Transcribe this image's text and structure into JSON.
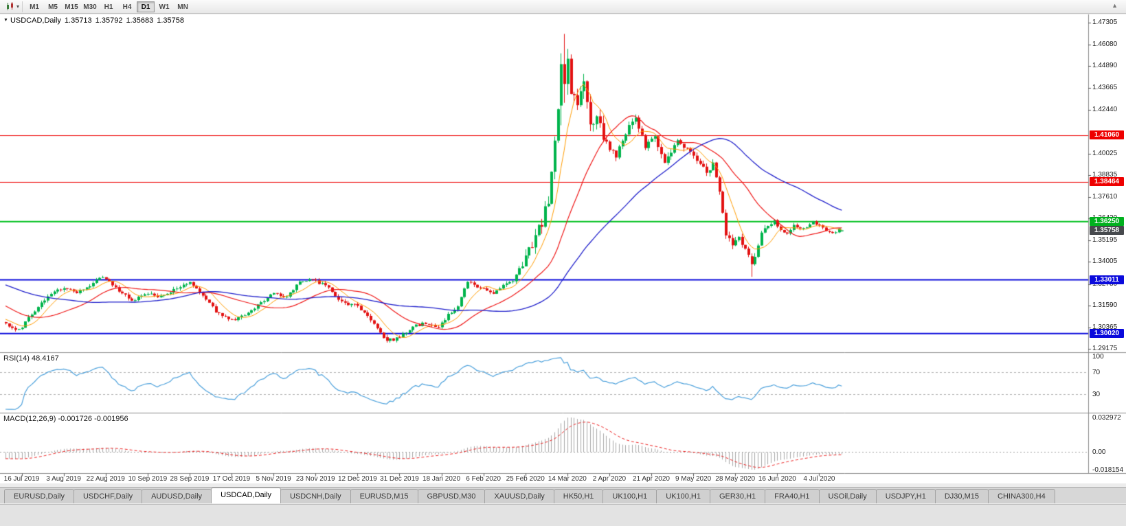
{
  "toolbar": {
    "periodicity_buttons": [
      "M1",
      "M5",
      "M15",
      "M30",
      "H1",
      "H4",
      "D1",
      "W1",
      "MN"
    ],
    "active_period": "D1",
    "dropdown_caret": "▾",
    "scroll_up_glyph": "▲"
  },
  "chart": {
    "symbol_label": "USDCAD,Daily",
    "collapse_marker": "▼",
    "ohlc": {
      "open": "1.35713",
      "high": "1.35792",
      "low": "1.35683",
      "close": "1.35758"
    },
    "up_color": "#00b44c",
    "down_color": "#e31212",
    "price_axis": {
      "top_price": 1.47305,
      "bottom_price": 1.29175,
      "labels": [
        "1.47305",
        "1.46080",
        "1.44890",
        "1.43665",
        "1.42440",
        "1.40025",
        "1.38835",
        "1.37610",
        "1.36420",
        "1.35195",
        "1.34005",
        "1.32780",
        "1.31590",
        "1.30365",
        "1.29175"
      ]
    },
    "hlines": [
      {
        "price": 1.4106,
        "color": "#ee0000",
        "width": 1
      },
      {
        "price": 1.38464,
        "color": "#ee0000",
        "width": 1
      },
      {
        "price": 1.3625,
        "color": "#00c01e",
        "width": 2
      },
      {
        "price": 1.33011,
        "color": "#0a0adc",
        "width": 2
      },
      {
        "price": 1.3002,
        "color": "#0a0adc",
        "width": 2
      }
    ],
    "badges": [
      {
        "text": "1.41060",
        "color": "#ee0000",
        "kind": "resistance-line"
      },
      {
        "text": "1.38464",
        "color": "#ee0000",
        "kind": "resistance-line"
      },
      {
        "text": "1.36250",
        "color": "#00b01e",
        "kind": "level-line"
      },
      {
        "text": "1.35758",
        "color": "#46494d",
        "kind": "last-price"
      },
      {
        "text": "1.33011",
        "color": "#0a0adc",
        "kind": "support-line"
      },
      {
        "text": "1.30020",
        "color": "#0a0adc",
        "kind": "support-line"
      }
    ]
  },
  "chart_data": {
    "type": "candlestick",
    "title": "USDCAD Daily",
    "seed": 1234567,
    "first_label_candle": 5,
    "label_step": 13,
    "x_labels": [
      "16 Jul 2019",
      "3 Aug 2019",
      "22 Aug 2019",
      "10 Sep 2019",
      "28 Sep 2019",
      "17 Oct 2019",
      "5 Nov 2019",
      "23 Nov 2019",
      "12 Dec 2019",
      "31 Dec 2019",
      "18 Jan 2020",
      "6 Feb 2020",
      "25 Feb 2020",
      "14 Mar 2020",
      "2 Apr 2020",
      "21 Apr 2020",
      "9 May 2020",
      "28 May 2020",
      "16 Jun 2020",
      "4 Jul 2020"
    ],
    "anchors": [
      [
        -60,
        1.3435
      ],
      [
        -45,
        1.3385
      ],
      [
        -30,
        1.3345
      ],
      [
        -15,
        1.3185
      ],
      [
        -5,
        1.309
      ],
      [
        0,
        1.3055
      ],
      [
        4,
        1.302
      ],
      [
        8,
        1.311
      ],
      [
        13,
        1.3215
      ],
      [
        18,
        1.326
      ],
      [
        22,
        1.3225
      ],
      [
        26,
        1.327
      ],
      [
        30,
        1.332
      ],
      [
        34,
        1.3255
      ],
      [
        39,
        1.3185
      ],
      [
        44,
        1.3225
      ],
      [
        48,
        1.3205
      ],
      [
        52,
        1.3245
      ],
      [
        57,
        1.3285
      ],
      [
        61,
        1.3215
      ],
      [
        65,
        1.3125
      ],
      [
        70,
        1.3075
      ],
      [
        74,
        1.3105
      ],
      [
        78,
        1.316
      ],
      [
        83,
        1.323
      ],
      [
        87,
        1.3205
      ],
      [
        91,
        1.3295
      ],
      [
        95,
        1.33
      ],
      [
        99,
        1.327
      ],
      [
        104,
        1.3175
      ],
      [
        109,
        1.3155
      ],
      [
        113,
        1.308
      ],
      [
        117,
        1.2985
      ],
      [
        120,
        1.2965
      ],
      [
        124,
        1.301
      ],
      [
        127,
        1.3045
      ],
      [
        130,
        1.306
      ],
      [
        134,
        1.3035
      ],
      [
        137,
        1.3105
      ],
      [
        140,
        1.316
      ],
      [
        143,
        1.329
      ],
      [
        147,
        1.3255
      ],
      [
        151,
        1.323
      ],
      [
        154,
        1.327
      ],
      [
        157,
        1.33
      ],
      [
        160,
        1.3395
      ],
      [
        163,
        1.3505
      ],
      [
        166,
        1.362
      ],
      [
        168,
        1.375
      ],
      [
        170,
        1.405
      ],
      [
        172,
        1.448
      ],
      [
        174,
        1.453
      ],
      [
        175,
        1.435
      ],
      [
        177,
        1.428
      ],
      [
        179,
        1.443
      ],
      [
        181,
        1.415
      ],
      [
        183,
        1.419
      ],
      [
        186,
        1.406
      ],
      [
        189,
        1.398
      ],
      [
        192,
        1.412
      ],
      [
        195,
        1.42
      ],
      [
        198,
        1.404
      ],
      [
        201,
        1.4095
      ],
      [
        204,
        1.3955
      ],
      [
        206,
        1.401
      ],
      [
        208,
        1.409
      ],
      [
        211,
        1.403
      ],
      [
        214,
        1.3975
      ],
      [
        217,
        1.3895
      ],
      [
        219,
        1.394
      ],
      [
        221,
        1.379
      ],
      [
        223,
        1.356
      ],
      [
        225,
        1.349
      ],
      [
        227,
        1.3545
      ],
      [
        229,
        1.347
      ],
      [
        231,
        1.339
      ],
      [
        233,
        1.348
      ],
      [
        234,
        1.355
      ],
      [
        236,
        1.36
      ],
      [
        238,
        1.363
      ],
      [
        240,
        1.3575
      ],
      [
        242,
        1.3555
      ],
      [
        244,
        1.3605
      ],
      [
        246,
        1.3585
      ],
      [
        248,
        1.3595
      ],
      [
        250,
        1.3625
      ],
      [
        252,
        1.36
      ],
      [
        254,
        1.3575
      ],
      [
        256,
        1.3555
      ],
      [
        258,
        1.3585
      ],
      [
        259,
        1.35758
      ]
    ],
    "volatility": [
      {
        "from": -60,
        "to": 159,
        "vol": 0.0016
      },
      {
        "from": 160,
        "to": 185,
        "vol": 0.0055
      },
      {
        "from": 186,
        "to": 212,
        "vol": 0.0032
      },
      {
        "from": 213,
        "to": 235,
        "vol": 0.0028
      },
      {
        "from": 236,
        "to": 259,
        "vol": 0.0014
      }
    ],
    "key_candles": [
      {
        "i": 118,
        "o": 1.2982,
        "h": 1.2996,
        "l": 1.2952,
        "c": 1.2962
      },
      {
        "i": 172,
        "o": 1.427,
        "h": 1.456,
        "l": 1.416,
        "c": 1.45
      },
      {
        "i": 173,
        "o": 1.45,
        "h": 1.4668,
        "l": 1.4285,
        "c": 1.439
      },
      {
        "i": 174,
        "o": 1.439,
        "h": 1.4585,
        "l": 1.433,
        "c": 1.453
      },
      {
        "i": 231,
        "o": 1.3432,
        "h": 1.3448,
        "l": 1.3318,
        "c": 1.3388
      },
      {
        "i": 259,
        "o": 1.35713,
        "h": 1.35792,
        "l": 1.35683,
        "c": 1.35758
      }
    ],
    "moving_averages": [
      {
        "period": 8,
        "color": "#ff9c00",
        "width": 1
      },
      {
        "period": 24,
        "color": "#f01818",
        "width": 1.2
      },
      {
        "period": 55,
        "color": "#2020cc",
        "width": 1.3
      }
    ]
  },
  "rsi_panel": {
    "label": "RSI(14) 48.4167",
    "period": 14,
    "line_color": "#4aa0dc",
    "levels": [
      {
        "text": "100",
        "value": 100,
        "dashed": false
      },
      {
        "text": "70",
        "value": 70,
        "dashed": true
      },
      {
        "text": "30",
        "value": 30,
        "dashed": true
      }
    ]
  },
  "macd_panel": {
    "label": "MACD(12,26,9) -0.001726 -0.001956",
    "fast": 12,
    "slow": 26,
    "signal": 9,
    "hist_color": "#a8a8a8",
    "signal_color": "#ee2222",
    "axis": {
      "max_label": "0.032972",
      "zero_label": "0.00",
      "min_label": "-0.018154"
    }
  },
  "tabs": {
    "active_index": 3,
    "items": [
      "EURUSD,Daily",
      "USDCHF,Daily",
      "AUDUSD,Daily",
      "USDCAD,Daily",
      "USDCNH,Daily",
      "EURUSD,M15",
      "GBPUSD,M30",
      "XAUUSD,Daily",
      "HK50,H1",
      "UK100,H1",
      "UK100,H1",
      "GER30,H1",
      "FRA40,H1",
      "USOil,Daily",
      "USDJPY,H1",
      "DJ30,M15",
      "CHINA300,H4"
    ]
  }
}
